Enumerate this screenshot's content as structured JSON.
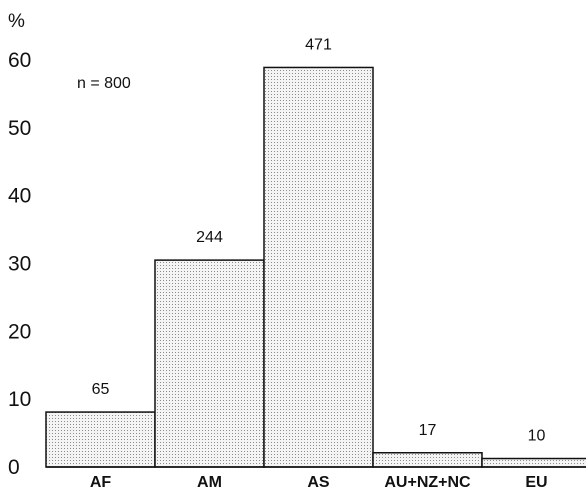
{
  "chart_data": {
    "type": "bar",
    "y_unit": "%",
    "annotation": "n = 800",
    "categories": [
      "AF",
      "AM",
      "AS",
      "AU+NZ+NC",
      "EU"
    ],
    "values": [
      8.1,
      30.5,
      58.9,
      2.1,
      1.25
    ],
    "data_labels": [
      "65",
      "244",
      "471",
      "17",
      "10"
    ],
    "ylim": [
      0,
      60
    ],
    "yticks": [
      0,
      10,
      20,
      30,
      40,
      50,
      60
    ],
    "grid": false,
    "bar_fill": "#e0e0e0",
    "bar_pattern": "dotted",
    "bar_edge": "#111111"
  }
}
